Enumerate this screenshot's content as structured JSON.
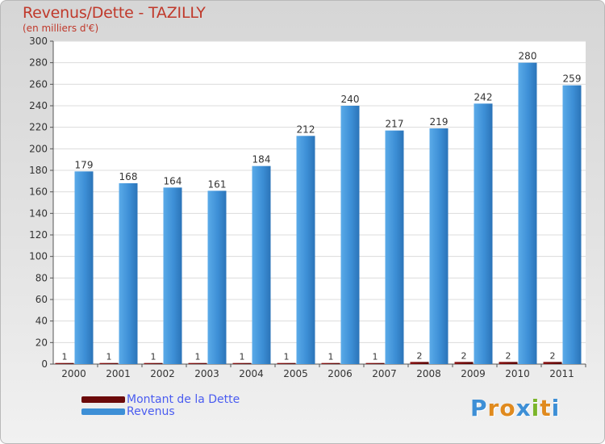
{
  "title": "Revenus/Dette - TAZILLY",
  "subtitle": "(en milliers d'€)",
  "colors": {
    "dette": "#6b0a0a",
    "revenus": "#3d8fd6",
    "title": "#c0392b",
    "legend_text": "#4a5cf0"
  },
  "legend": {
    "items": [
      {
        "label": "Montant de la Dette",
        "color": "#6b0a0a"
      },
      {
        "label": "Revenus",
        "color": "#3d8fd6"
      }
    ]
  },
  "logo": {
    "text": "Proxiti",
    "letters": [
      {
        "ch": "P",
        "color": "#3d8fd6"
      },
      {
        "ch": "r",
        "color": "#e08a1e"
      },
      {
        "ch": "o",
        "color": "#e08a1e"
      },
      {
        "ch": "x",
        "color": "#3d8fd6"
      },
      {
        "ch": "i",
        "color": "#7bb52a"
      },
      {
        "ch": "t",
        "color": "#e08a1e"
      },
      {
        "ch": "i",
        "color": "#3d8fd6"
      }
    ]
  },
  "chart_data": {
    "type": "bar",
    "title": "Revenus/Dette - TAZILLY",
    "subtitle": "(en milliers d'€)",
    "xlabel": "",
    "ylabel": "",
    "ylim": [
      0,
      300
    ],
    "yticks": [
      0,
      20,
      40,
      60,
      80,
      100,
      120,
      140,
      160,
      180,
      200,
      220,
      240,
      260,
      280,
      300
    ],
    "grid": true,
    "legend_position": "bottom-left",
    "categories": [
      "2000",
      "2001",
      "2002",
      "2003",
      "2004",
      "2005",
      "2006",
      "2007",
      "2008",
      "2009",
      "2010",
      "2011"
    ],
    "series": [
      {
        "name": "Montant de la Dette",
        "values": [
          1,
          1,
          1,
          1,
          1,
          1,
          1,
          1,
          2,
          2,
          2,
          2
        ]
      },
      {
        "name": "Revenus",
        "values": [
          179,
          168,
          164,
          161,
          184,
          212,
          240,
          217,
          219,
          242,
          280,
          259
        ]
      }
    ]
  }
}
